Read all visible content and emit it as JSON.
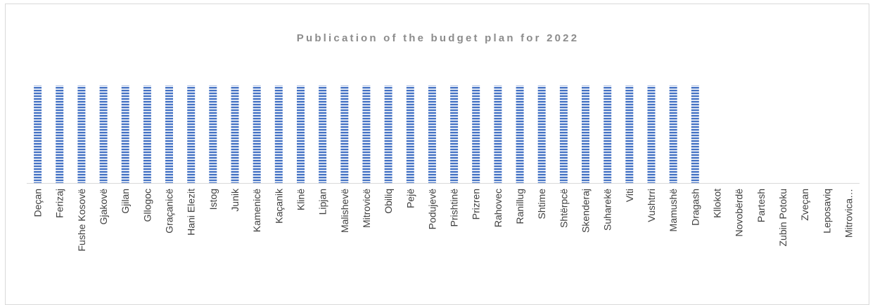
{
  "chart_data": {
    "type": "bar",
    "title": "Publication of the budget plan for 2022",
    "xlabel": "",
    "ylabel": "",
    "categories": [
      "Deçan",
      "Ferizaj",
      "Fushe Kosovë",
      "Gjakovë",
      "Gjilan",
      "Gllogoc",
      "Graçanicë",
      "Hani Elezit",
      "Istog",
      "Junik",
      "Kamenicë",
      "Kaçanik",
      "Klinë",
      "Lipjan",
      "Malishevë",
      "Mitrovicë",
      "Obiliq",
      "Pejë",
      "Podujevë",
      "Prishtinë",
      "Prizren",
      "Rahovec",
      "Ranillug",
      "Shtime",
      "Shtërpcë",
      "Skenderaj",
      "Suharekë",
      "Viti",
      "Vushtrri",
      "Mamushë",
      "Dragash",
      "Kllokot",
      "Novobërdë",
      "Partesh",
      "Zubin Potoku",
      "Zveçan",
      "Leposaviq",
      "Mitrovica…"
    ],
    "values": [
      1,
      1,
      1,
      1,
      1,
      1,
      1,
      1,
      1,
      1,
      1,
      1,
      1,
      1,
      1,
      1,
      1,
      1,
      1,
      1,
      1,
      1,
      1,
      1,
      1,
      1,
      1,
      1,
      1,
      1,
      1,
      0,
      0,
      0,
      0,
      0,
      0,
      0
    ],
    "ylim": [
      0,
      1.1
    ],
    "grid": false,
    "legend": "none",
    "bar_color": "#4472c4",
    "bar_pattern": "horizontal-stripes"
  }
}
